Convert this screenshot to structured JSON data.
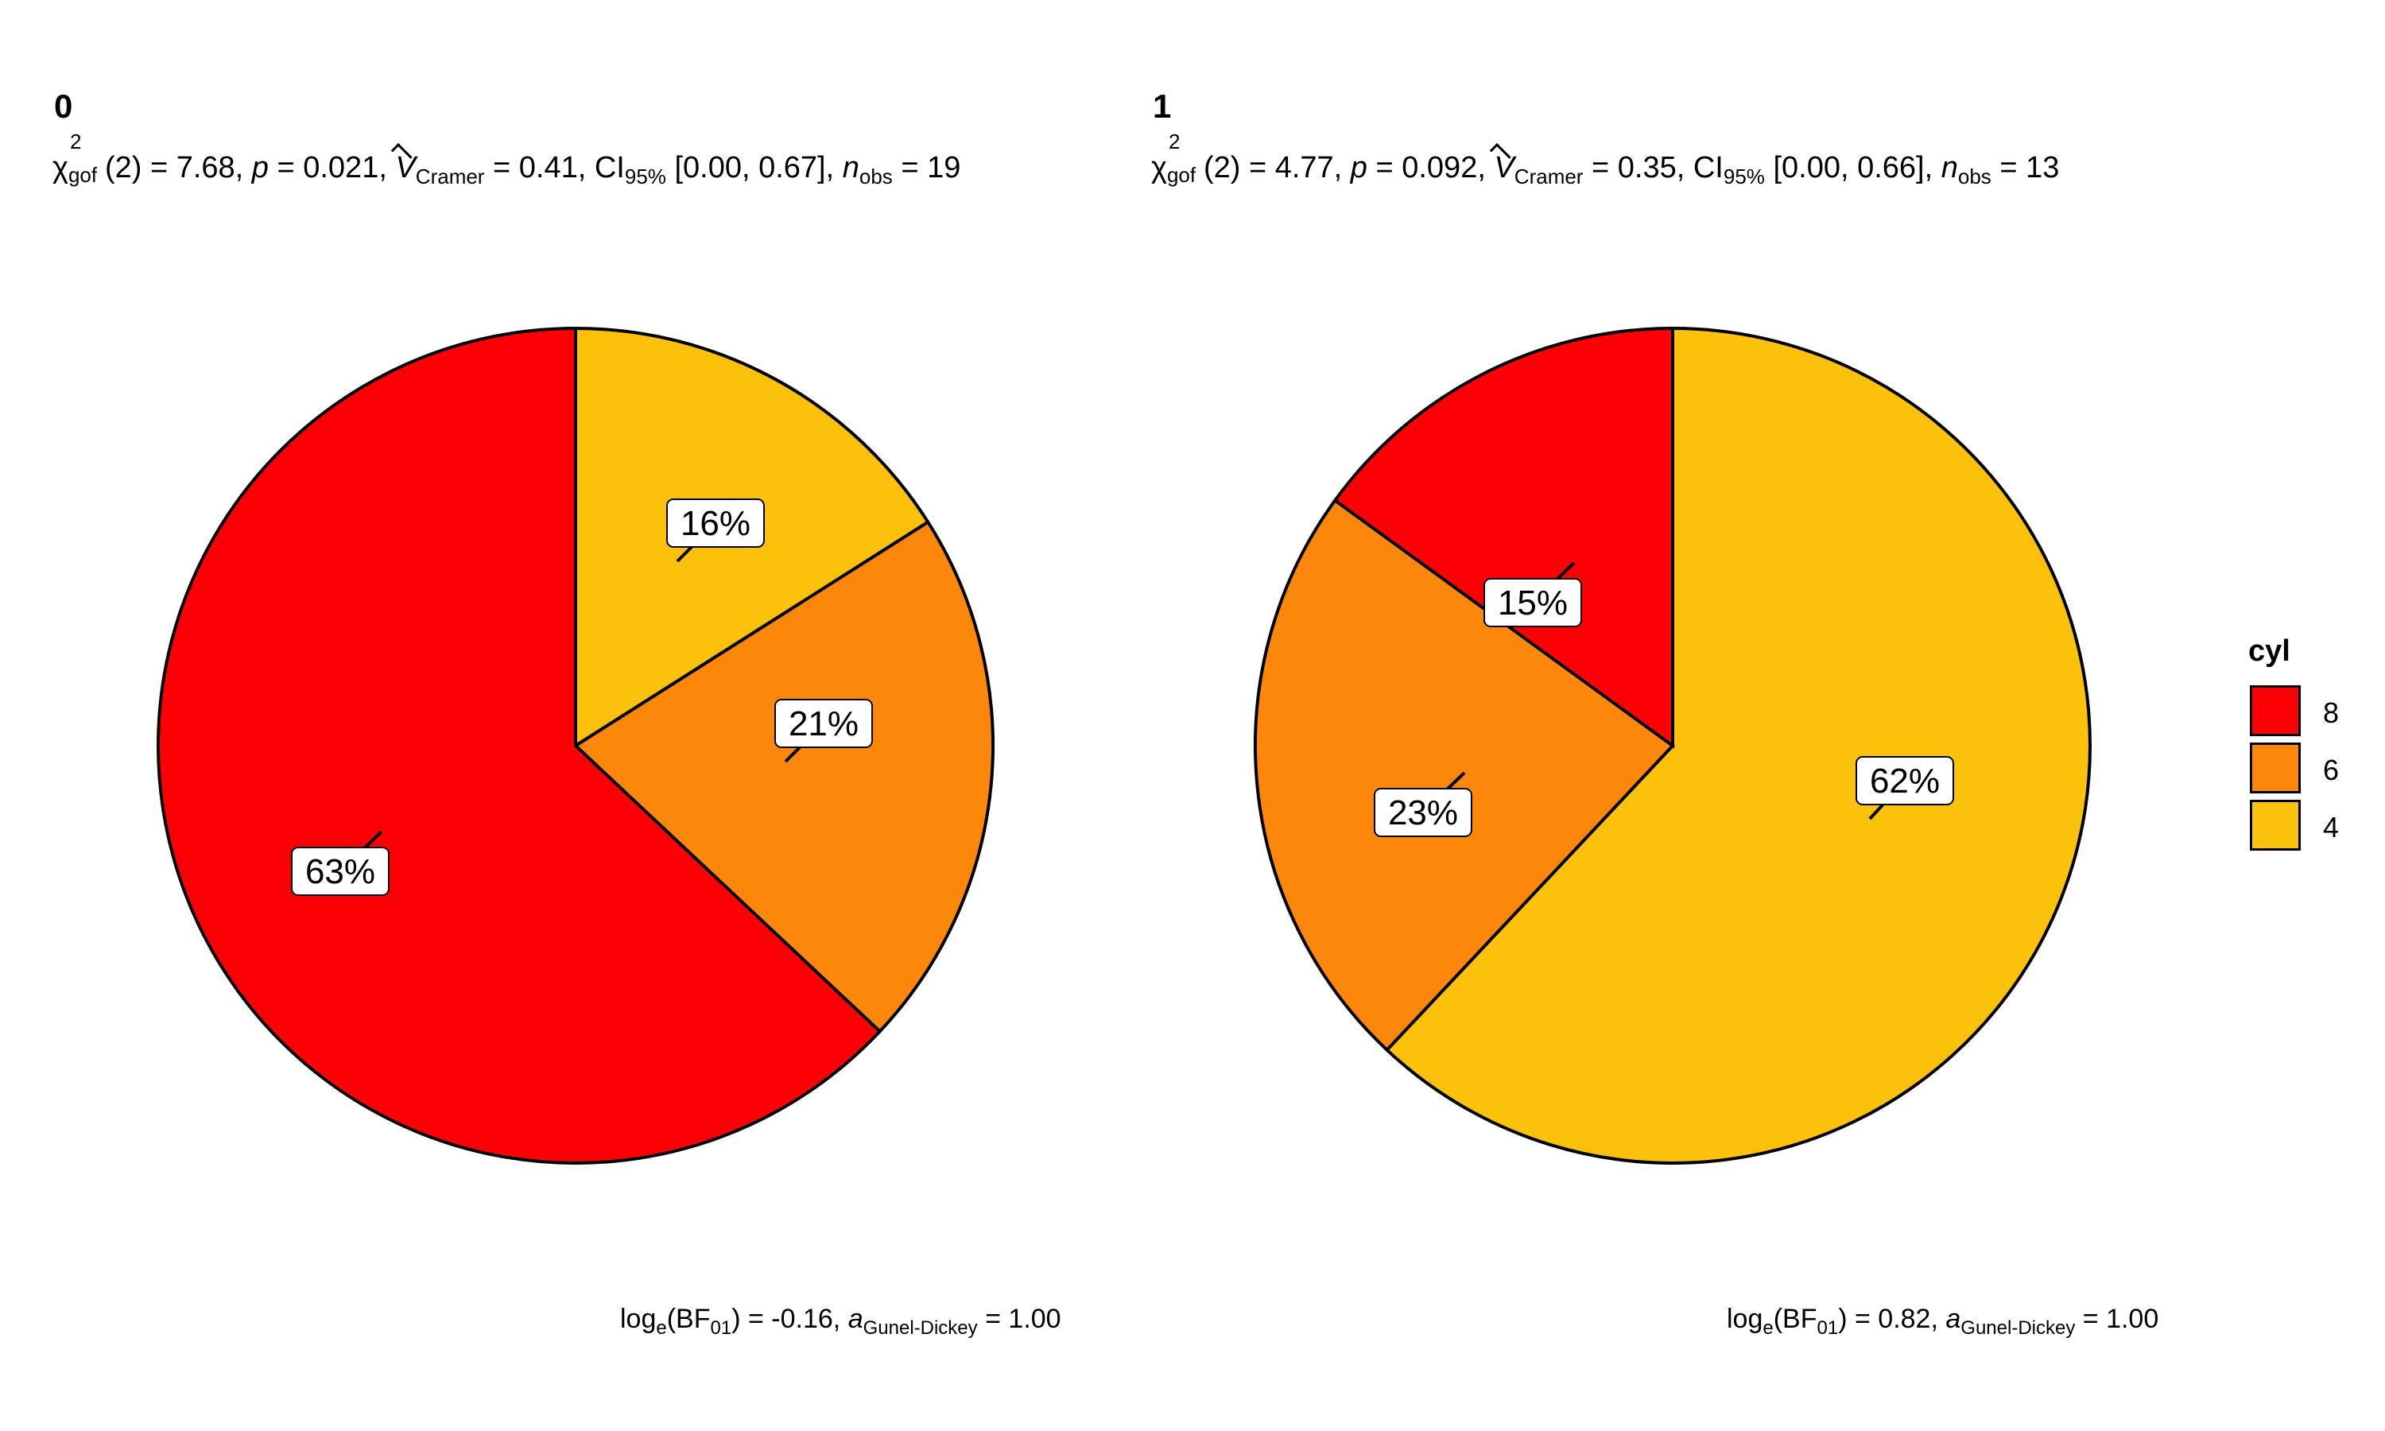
{
  "colors": {
    "8": "#FC0006",
    "6": "#FC870A",
    "4": "#FCC10A"
  },
  "legend": {
    "title": "cyl",
    "items": [
      {
        "label": "8",
        "color": "#FC0006"
      },
      {
        "label": "6",
        "color": "#FC870A"
      },
      {
        "label": "4",
        "color": "#FCC10A"
      }
    ]
  },
  "chart_data": [
    {
      "type": "pie",
      "title": "0",
      "subtitle": {
        "chi_df": "(2) = 7.68, ",
        "p": " = 0.021, ",
        "v": " = 0.41, CI",
        "ci": " [0.00, 0.67], ",
        "n": " = 19"
      },
      "caption": {
        "bf": ") = -0.16, ",
        "a": " = 1.00"
      },
      "slices": [
        {
          "label": "4",
          "percent": 16,
          "color": "#FCC10A"
        },
        {
          "label": "6",
          "percent": 21,
          "color": "#FC870A"
        },
        {
          "label": "8",
          "percent": 63,
          "color": "#FC0006"
        }
      ],
      "labels": [
        "16%",
        "21%",
        "63%"
      ]
    },
    {
      "type": "pie",
      "title": "1",
      "subtitle": {
        "chi_df": "(2) = 4.77, ",
        "p": " = 0.092, ",
        "v": " = 0.35, CI",
        "ci": " [0.00, 0.66], ",
        "n": " = 13"
      },
      "caption": {
        "bf": ") = 0.82, ",
        "a": " = 1.00"
      },
      "slices": [
        {
          "label": "4",
          "percent": 62,
          "color": "#FCC10A"
        },
        {
          "label": "6",
          "percent": 23,
          "color": "#FC870A"
        },
        {
          "label": "8",
          "percent": 15,
          "color": "#FC0006"
        }
      ],
      "labels": [
        "62%",
        "23%",
        "15%"
      ]
    }
  ],
  "text": {
    "chi": "χ",
    "sup2": "2",
    "gof": "gof",
    "p_sym": "p",
    "v_sym": "V",
    "cramer": "Cramer",
    "ci_sub": "95%",
    "n_sym": "n",
    "obs": "obs",
    "log": "log",
    "e": "e",
    "bf_open": "(BF",
    "bf_sub": "01",
    "a_sym": "a",
    "gd": "Gunel-Dickey"
  }
}
